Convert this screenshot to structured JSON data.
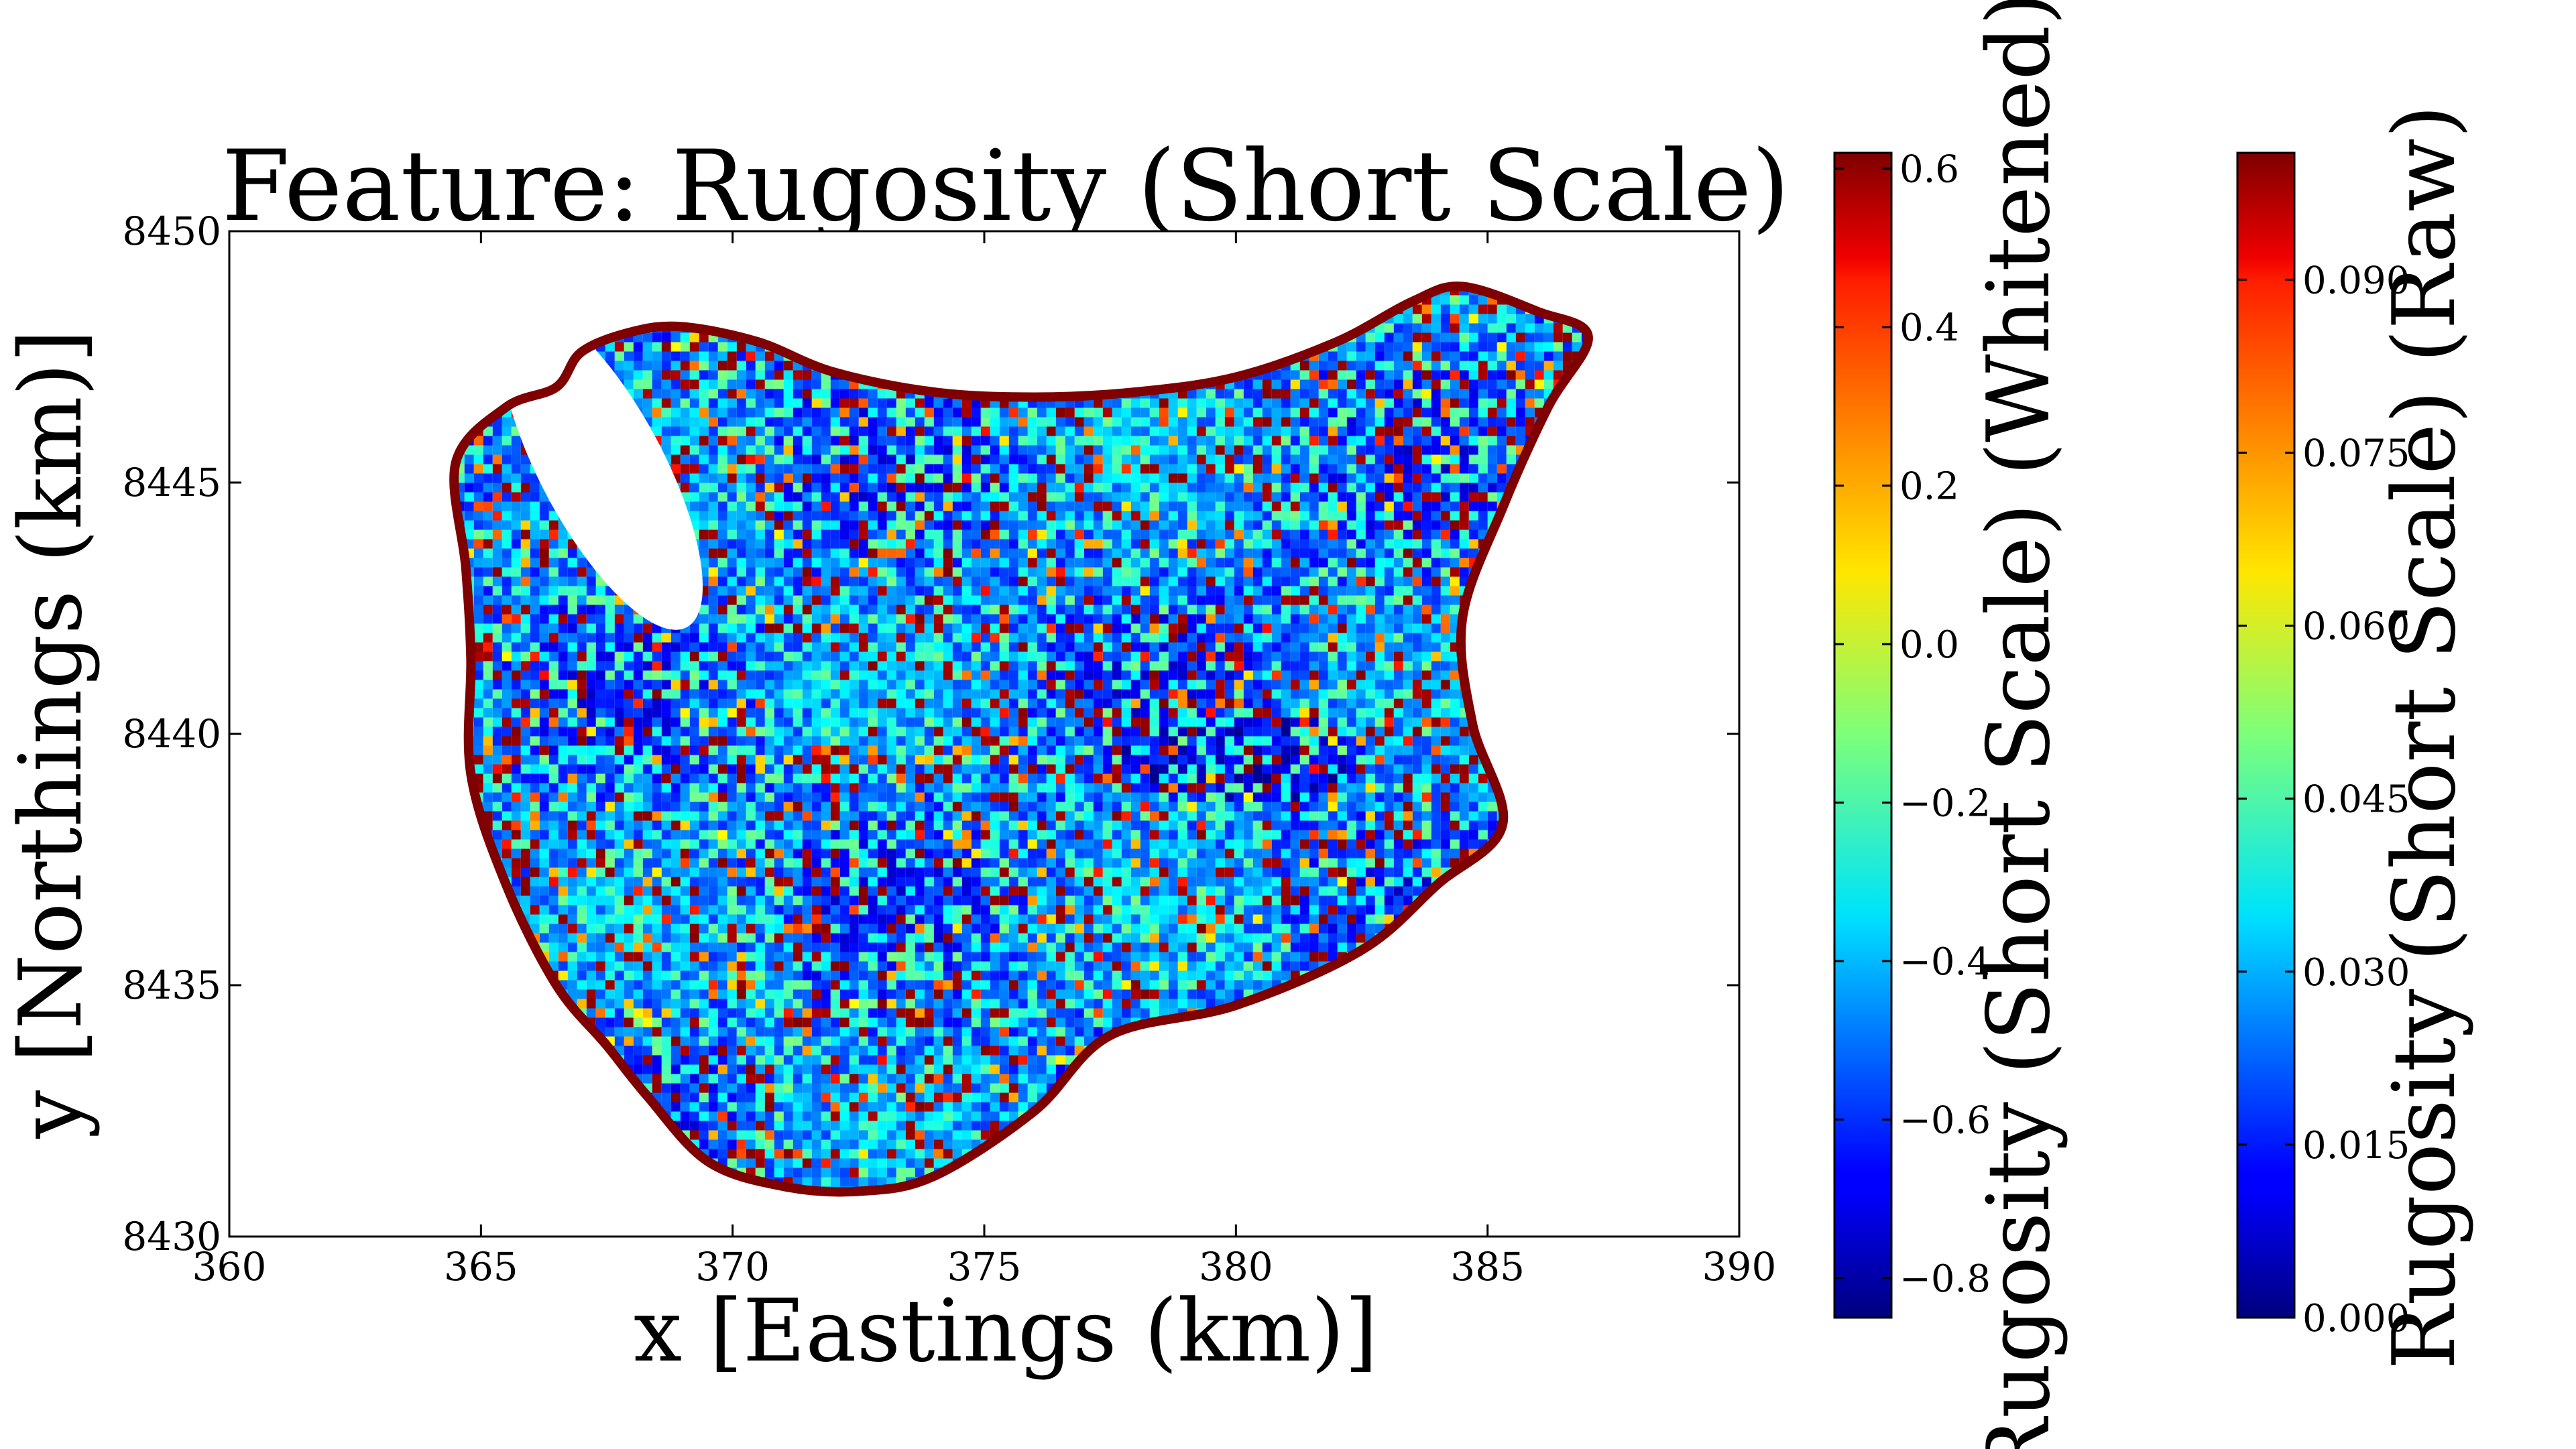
{
  "chart_data": {
    "type": "scatter",
    "title": "Feature: Rugosity (Short Scale)",
    "xlabel": "x [Eastings (km)]",
    "ylabel": "y [Northings (km)]",
    "xlim": [
      360,
      390
    ],
    "ylim": [
      8430,
      8450
    ],
    "x_ticks": [
      "360",
      "365",
      "370",
      "375",
      "380",
      "385",
      "390"
    ],
    "y_ticks": [
      "8430",
      "8435",
      "8440",
      "8445",
      "8450"
    ],
    "grid": false,
    "colormap": "jet",
    "survey_region_outline": [
      [
        367.0,
        8447.6
      ],
      [
        368.0,
        8448.0
      ],
      [
        369.0,
        8448.1
      ],
      [
        370.5,
        8447.8
      ],
      [
        372.0,
        8447.2
      ],
      [
        374.0,
        8446.8
      ],
      [
        376.0,
        8446.7
      ],
      [
        378.0,
        8446.8
      ],
      [
        380.0,
        8447.1
      ],
      [
        382.0,
        8447.8
      ],
      [
        383.5,
        8448.6
      ],
      [
        384.5,
        8448.9
      ],
      [
        386.0,
        8448.4
      ],
      [
        387.0,
        8447.9
      ],
      [
        386.2,
        8446.5
      ],
      [
        385.3,
        8444.5
      ],
      [
        384.5,
        8442.3
      ],
      [
        384.7,
        8440.2
      ],
      [
        385.3,
        8438.2
      ],
      [
        384.0,
        8437.0
      ],
      [
        382.5,
        8435.7
      ],
      [
        380.0,
        8434.6
      ],
      [
        377.5,
        8434.0
      ],
      [
        376.0,
        8432.5
      ],
      [
        374.0,
        8431.2
      ],
      [
        372.5,
        8430.9
      ],
      [
        371.0,
        8431.0
      ],
      [
        369.5,
        8431.5
      ],
      [
        368.3,
        8432.8
      ],
      [
        367.5,
        8433.8
      ],
      [
        366.5,
        8435.0
      ],
      [
        365.5,
        8437.0
      ],
      [
        364.8,
        8439.2
      ],
      [
        364.8,
        8441.5
      ],
      [
        364.7,
        8443.3
      ],
      [
        364.5,
        8445.4
      ],
      [
        365.5,
        8446.5
      ],
      [
        366.5,
        8446.9
      ]
    ],
    "colorbars": [
      {
        "label": "Rugosity (Short Scale) (Whitened)",
        "vmin": -0.85,
        "vmax": 0.62,
        "ticks": [
          -0.8,
          -0.6,
          -0.4,
          -0.2,
          0.0,
          0.2,
          0.4,
          0.6
        ],
        "tick_labels": [
          "−0.8",
          "−0.6",
          "−0.4",
          "−0.2",
          "0.0",
          "0.2",
          "0.4",
          "0.6"
        ]
      },
      {
        "label": "Rugosity (Short Scale) (Raw)",
        "vmin": 0.0,
        "vmax": 0.101,
        "ticks": [
          0.0,
          0.015,
          0.03,
          0.045,
          0.06,
          0.075,
          0.09
        ],
        "tick_labels": [
          "0.000",
          "0.015",
          "0.030",
          "0.045",
          "0.060",
          "0.075",
          "0.090"
        ]
      }
    ]
  }
}
